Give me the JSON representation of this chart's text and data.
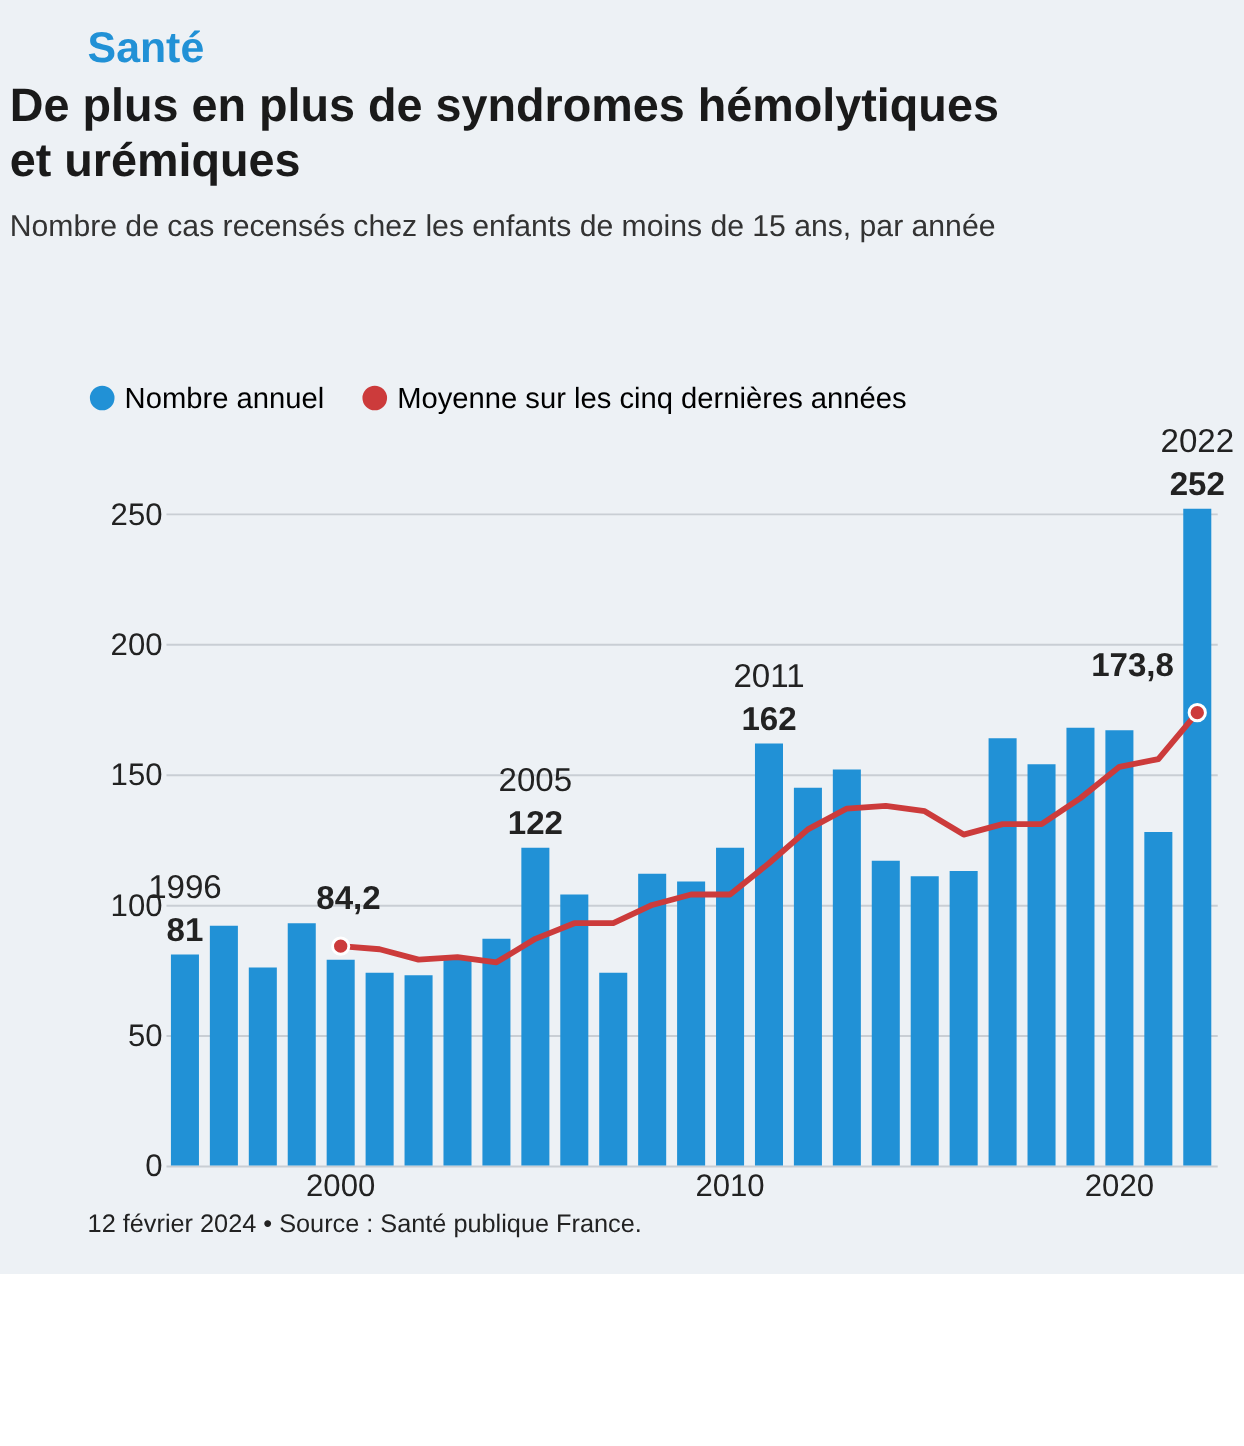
{
  "chart_data": {
    "type": "bar",
    "title": "De plus en plus de syndromes hémolytiques et urémiques",
    "subtitle": "Nombre de cas recensés chez les enfants de moins de 15 ans, par année",
    "categories": [
      null,
      null,
      null,
      null,
      "2000",
      null,
      null,
      null,
      null,
      null,
      null,
      null,
      null,
      null,
      "2010",
      null,
      null,
      null,
      null,
      null,
      null,
      null,
      null,
      null,
      "2020",
      null,
      null
    ],
    "series": [
      {
        "name": "Nombre annuel",
        "color": "#2191d6",
        "values": [
          81,
          92,
          76,
          93,
          79,
          74,
          73,
          79,
          87,
          122,
          104,
          74,
          112,
          109,
          122,
          162,
          145,
          152,
          117,
          111,
          113,
          164,
          154,
          168,
          167,
          128,
          252
        ],
        "value_labels": [
          "81",
          null,
          null,
          null,
          null,
          null,
          null,
          null,
          null,
          "122",
          null,
          null,
          null,
          null,
          null,
          "162",
          null,
          null,
          null,
          null,
          null,
          null,
          null,
          null,
          null,
          null,
          "252"
        ]
      },
      {
        "name": "Moyenne sur les cinq dernières années",
        "type": "line",
        "color": "#cc3b3b",
        "values": [
          null,
          null,
          null,
          null,
          84.2,
          83,
          79,
          80,
          78,
          87,
          93,
          93,
          100,
          104,
          104,
          116,
          129,
          137,
          138,
          136,
          127,
          131,
          131,
          141,
          153,
          156,
          173.8
        ],
        "value_labels": [
          null,
          null,
          null,
          null,
          "84,2",
          null,
          null,
          null,
          null,
          null,
          null,
          null,
          null,
          null,
          null,
          null,
          null,
          null,
          null,
          null,
          null,
          null,
          null,
          null,
          null,
          null,
          "173,8"
        ]
      }
    ],
    "ylim": [
      0,
      254
    ],
    "yticks": [
      0,
      50,
      100,
      150,
      200,
      250
    ],
    "grid": "y",
    "legend": "top left",
    "marker": "none",
    "line_style": "solid",
    "annotations": [
      "Santé",
      "1996",
      "2005",
      "2011",
      "2022",
      "12 février 2024 • Source : Santé publique France."
    ]
  }
}
